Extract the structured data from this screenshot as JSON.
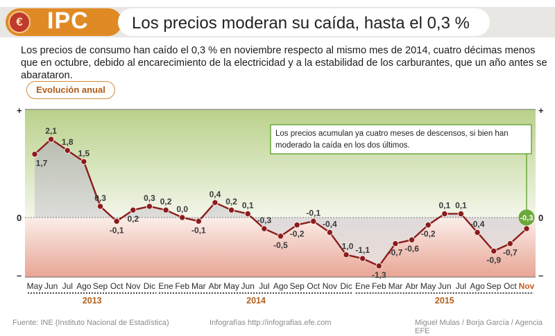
{
  "header": {
    "logo_symbol": "€",
    "logo_text": "IPC",
    "title": "Los precios moderan su caída, hasta el 0,3 %"
  },
  "lead": "Los precios de consumo han caído el 0,3 % en noviembre respecto al mismo mes de 2014, cuatro décimas menos que en octubre, debido al encarecimiento de la electricidad y a la estabilidad de los carburantes, que un año antes se abarataron.",
  "section_label": "Evolución anual",
  "chart_data": {
    "type": "line",
    "categories": [
      "May",
      "Jun",
      "Jul",
      "Ago",
      "Sep",
      "Oct",
      "Nov",
      "Dic",
      "Ene",
      "Feb",
      "Mar",
      "Abr",
      "May",
      "Jun",
      "Jul",
      "Ago",
      "Sep",
      "Oct",
      "Nov",
      "Dic",
      "Ene",
      "Feb",
      "Mar",
      "Abr",
      "May",
      "Jun",
      "Jul",
      "Ago",
      "Sep",
      "Oct",
      "Nov"
    ],
    "values": [
      1.7,
      2.1,
      1.8,
      1.5,
      0.3,
      -0.1,
      0.2,
      0.3,
      0.2,
      0.0,
      -0.1,
      0.4,
      0.2,
      0.1,
      -0.3,
      -0.5,
      -0.2,
      -0.1,
      -0.4,
      -1.0,
      -1.1,
      -1.3,
      -0.7,
      -0.6,
      -0.2,
      0.1,
      0.1,
      -0.4,
      -0.9,
      -0.7,
      -0.3
    ],
    "value_labels": [
      "1,7",
      "2,1",
      "1,8",
      "1,5",
      "0,3",
      "-0,1",
      "0,2",
      "0,3",
      "0,2",
      "0,0",
      "-0,1",
      "0,4",
      "0,2",
      "0,1",
      "-0,3",
      "-0,5",
      "-0,2",
      "-0,1",
      "-0,4",
      "-1,0",
      "-1,1",
      "-1,3",
      "-0,7",
      "-0,6",
      "-0,2",
      "0,1",
      "0,1",
      "-0,4",
      "-0,9",
      "-0,7",
      "-0,3"
    ],
    "years": [
      {
        "label": "2013",
        "from": 0,
        "to": 7
      },
      {
        "label": "2014",
        "from": 8,
        "to": 19
      },
      {
        "label": "2015",
        "from": 20,
        "to": 30
      }
    ],
    "axis_labels": {
      "plus": "+",
      "zero": "0",
      "minus": "–"
    },
    "ylim": [
      -1.6,
      2.9
    ],
    "annotation": "Los precios acumulan ya cuatro meses de descensos, si bien han moderado la caída en los dos últimos.",
    "highlight_label": "-0,3",
    "colors": {
      "line": "#8b1c1c",
      "positive_area": "#b9d18a",
      "negative_area": "#e8a595",
      "highlight": "#6aa83a",
      "last_month": "#c75a1c"
    }
  },
  "footer": {
    "source": "Fuente: INE (Instituto Nacional de Estadística)",
    "site": "Infografías http://infografias.efe.com",
    "credits": "Miguel Mulas / Borja García / Agencia EFE"
  }
}
